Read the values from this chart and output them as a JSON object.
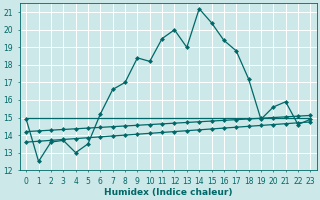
{
  "xlabel": "Humidex (Indice chaleur)",
  "bg_color": "#cde8e8",
  "grid_color": "#b0d8d8",
  "line_color": "#006868",
  "x": [
    0,
    1,
    2,
    3,
    4,
    5,
    6,
    7,
    8,
    9,
    10,
    11,
    12,
    13,
    14,
    15,
    16,
    17,
    18,
    19,
    20,
    21,
    22,
    23
  ],
  "y_main": [
    14.9,
    12.5,
    13.6,
    13.7,
    13.0,
    13.5,
    15.2,
    16.6,
    17.0,
    18.4,
    18.2,
    19.5,
    20.0,
    19.0,
    21.2,
    20.4,
    19.4,
    18.8,
    17.2,
    14.9,
    15.6,
    15.9,
    14.6,
    14.9
  ],
  "y_trend1": [
    13.6,
    13.65,
    13.7,
    13.75,
    13.8,
    13.85,
    13.9,
    13.95,
    14.0,
    14.05,
    14.1,
    14.15,
    14.2,
    14.25,
    14.3,
    14.35,
    14.4,
    14.45,
    14.5,
    14.55,
    14.6,
    14.65,
    14.7,
    14.75
  ],
  "y_trend2": [
    14.2,
    14.24,
    14.28,
    14.32,
    14.36,
    14.4,
    14.44,
    14.48,
    14.52,
    14.56,
    14.6,
    14.64,
    14.68,
    14.72,
    14.76,
    14.8,
    14.84,
    14.88,
    14.92,
    14.96,
    15.0,
    15.04,
    15.08,
    15.12
  ],
  "y_flat": [
    15.0,
    15.0,
    15.0,
    15.0,
    15.0,
    15.0,
    15.0,
    15.0,
    15.0,
    15.0,
    15.0,
    15.0,
    15.0,
    15.0,
    15.0,
    15.0,
    15.0,
    15.0,
    15.0,
    15.0,
    15.0,
    15.0,
    15.0,
    15.0
  ],
  "ylim": [
    12,
    21.5
  ],
  "xlim": [
    -0.5,
    23.5
  ],
  "yticks": [
    12,
    13,
    14,
    15,
    16,
    17,
    18,
    19,
    20,
    21
  ],
  "xticks": [
    0,
    1,
    2,
    3,
    4,
    5,
    6,
    7,
    8,
    9,
    10,
    11,
    12,
    13,
    14,
    15,
    16,
    17,
    18,
    19,
    20,
    21,
    22,
    23
  ],
  "markersize": 2.5,
  "linewidth": 0.9,
  "fontsize_label": 6.5,
  "fontsize_tick": 5.5
}
